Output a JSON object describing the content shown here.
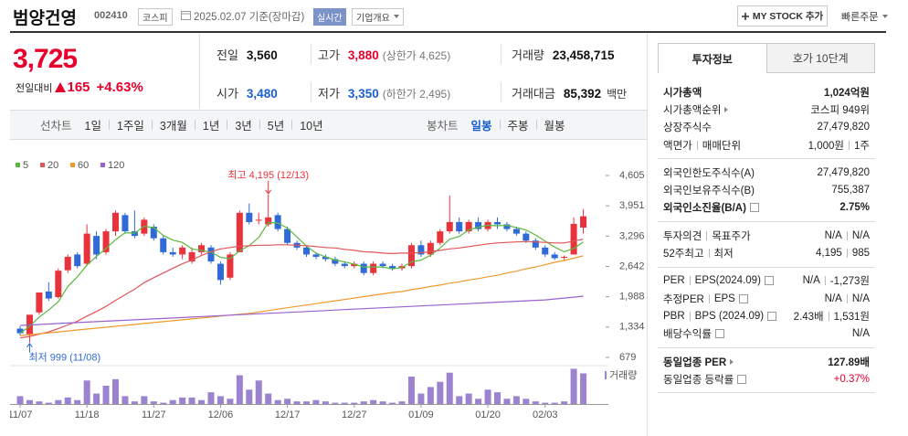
{
  "header": {
    "name": "범양건영",
    "code": "002410",
    "market": "코스피",
    "date": "2025.02.07 기준(장마감)",
    "realtime": "실시간",
    "company": "기업개요",
    "my_stock": "MY STOCK 추가",
    "quick_order": "빠른주문"
  },
  "quote": {
    "price": "3,725",
    "change_label": "전일대비",
    "change": "165",
    "change_rate": "+4.63%",
    "stats": [
      [
        {
          "label": "전일",
          "value": "3,560",
          "color": "#111111"
        },
        {
          "label": "고가",
          "value": "3,880",
          "note": "(상한가 4,625)",
          "color": "#e8002c"
        },
        {
          "label": "거래량",
          "value": "23,458,715",
          "color": "#111111"
        }
      ],
      [
        {
          "label": "시가",
          "value": "3,480",
          "color": "#1a5fd1"
        },
        {
          "label": "저가",
          "value": "3,350",
          "note": "(하한가 2,495)",
          "color": "#1a5fd1"
        },
        {
          "label": "거래대금",
          "value": "85,392",
          "unit": "백만",
          "color": "#111111"
        }
      ]
    ]
  },
  "toolbar": {
    "line_chart": "선차트",
    "line_periods": [
      "1일",
      "1주일",
      "3개월",
      "1년",
      "3년",
      "5년",
      "10년"
    ],
    "candle_chart": "봉차트",
    "candle_periods": [
      "일봉",
      "주봉",
      "월봉"
    ],
    "active": "일봉"
  },
  "invest_info": {
    "tabs": [
      "투자정보",
      "호가 10단계"
    ],
    "sections": [
      [
        {
          "label": [
            "시가총액"
          ],
          "value": [
            "1,024억원"
          ],
          "bold": true
        },
        {
          "label": [
            "시가총액순위"
          ],
          "link": true,
          "value": [
            "코스피 949위"
          ]
        },
        {
          "label": [
            "상장주식수"
          ],
          "value": [
            "27,479,820"
          ]
        },
        {
          "label": [
            "액면가",
            "매매단위"
          ],
          "value": [
            "1,000원",
            "1주"
          ]
        }
      ],
      [
        {
          "label": [
            "외국인한도주식수(A)"
          ],
          "value": [
            "27,479,820"
          ]
        },
        {
          "label": [
            "외국인보유주식수(B)"
          ],
          "value": [
            "755,387"
          ]
        },
        {
          "label": [
            "외국인소진율(B/A)"
          ],
          "help": true,
          "value": [
            "2.75%"
          ],
          "bold": true
        }
      ],
      [
        {
          "label": [
            "투자의견",
            "목표주가"
          ],
          "value": [
            "N/A",
            "N/A"
          ]
        },
        {
          "label": [
            "52주최고",
            "최저"
          ],
          "value": [
            "4,195",
            "985"
          ]
        }
      ],
      [
        {
          "label": [
            "PER",
            "EPS(2024.09)"
          ],
          "help": true,
          "value": [
            "N/A",
            "-1,273원"
          ]
        },
        {
          "label": [
            "추정PER",
            "EPS"
          ],
          "help": true,
          "value": [
            "N/A",
            "N/A"
          ]
        },
        {
          "label": [
            "PBR",
            "BPS (2024.09)"
          ],
          "help": true,
          "value": [
            "2.43배",
            "1,531원"
          ]
        },
        {
          "label": [
            "배당수익률"
          ],
          "help": true,
          "value": [
            "N/A"
          ]
        }
      ],
      [
        {
          "label": [
            "동일업종 PER"
          ],
          "link": true,
          "value": [
            "127.89배"
          ],
          "bold": true
        },
        {
          "label": [
            "동일업종 등락률"
          ],
          "help": true,
          "value": [
            "+0.37%"
          ],
          "color": "#e8002c"
        }
      ]
    ]
  },
  "chart_data": {
    "type": "candlestick",
    "categories": [
      "11/07",
      null,
      null,
      null,
      null,
      null,
      null,
      "11/18",
      null,
      null,
      null,
      null,
      null,
      null,
      "11/27",
      null,
      null,
      null,
      null,
      null,
      null,
      "12/06",
      null,
      null,
      null,
      null,
      null,
      null,
      "12/17",
      null,
      null,
      null,
      null,
      null,
      null,
      "12/27",
      null,
      null,
      null,
      null,
      null,
      null,
      "01/09",
      null,
      null,
      null,
      null,
      null,
      null,
      "01/20",
      null,
      null,
      null,
      null,
      null,
      "02/03",
      null,
      null,
      null,
      null
    ],
    "open": [
      1300,
      1180,
      1650,
      2100,
      1980,
      2560,
      2900,
      2700,
      3300,
      2950,
      3400,
      3750,
      3400,
      3350,
      3500,
      3250,
      2950,
      2900,
      2750,
      2950,
      3050,
      2700,
      2400,
      2950,
      3800,
      3650,
      3550,
      3750,
      3450,
      3150,
      3050,
      2900,
      2850,
      2800,
      2700,
      2650,
      2700,
      2500,
      2700,
      2650,
      2600,
      2650,
      3100,
      2900,
      3150,
      3400,
      3600,
      3400,
      3600,
      3450,
      3600,
      3550,
      3450,
      3350,
      3200,
      3050,
      2900,
      2830,
      2900,
      3480
    ],
    "high": [
      1350,
      1600,
      2080,
      2300,
      2600,
      2900,
      2950,
      3550,
      3400,
      3450,
      3850,
      3800,
      3850,
      3700,
      3550,
      3300,
      3050,
      3100,
      3050,
      3150,
      3100,
      2750,
      2950,
      3850,
      4000,
      3800,
      4195,
      3800,
      3500,
      3200,
      3100,
      2950,
      2900,
      2850,
      2750,
      2750,
      2750,
      2750,
      2750,
      2700,
      2700,
      3150,
      3200,
      3200,
      3450,
      4170,
      3700,
      3650,
      3700,
      3650,
      3700,
      3600,
      3500,
      3400,
      3250,
      3100,
      2950,
      2880,
      3700,
      3880
    ],
    "low": [
      1150,
      999,
      1600,
      1900,
      1950,
      2500,
      2600,
      2650,
      2800,
      2900,
      3300,
      3350,
      3250,
      3300,
      3200,
      2900,
      2850,
      2800,
      2700,
      2900,
      2700,
      2250,
      2350,
      2950,
      3550,
      3550,
      3500,
      3400,
      3100,
      3000,
      2850,
      2800,
      2750,
      2650,
      2600,
      2600,
      2450,
      2450,
      2600,
      2550,
      2550,
      2600,
      2850,
      2850,
      3100,
      3350,
      3350,
      3350,
      3400,
      3400,
      3450,
      3400,
      3300,
      3150,
      3000,
      2850,
      2780,
      2780,
      2900,
      3350
    ],
    "close": [
      1200,
      1600,
      2080,
      1950,
      2550,
      2850,
      2650,
      3350,
      2900,
      3400,
      3800,
      3400,
      3300,
      3650,
      3250,
      2950,
      2900,
      3050,
      2950,
      3100,
      2750,
      2350,
      2900,
      3800,
      3600,
      3650,
      3700,
      3450,
      3150,
      3050,
      2900,
      2850,
      2800,
      2700,
      2650,
      2700,
      2500,
      2700,
      2650,
      2600,
      2650,
      3100,
      2900,
      3150,
      3400,
      3600,
      3400,
      3600,
      3450,
      3600,
      3550,
      3450,
      3350,
      3200,
      3050,
      2900,
      2820,
      2850,
      3560,
      3725
    ],
    "up_color": "#e8323c",
    "down_color": "#2f6ad8",
    "series": [
      {
        "name": "5",
        "color": "#5cb840",
        "values": [
          1200,
          1350,
          1550,
          1700,
          1880,
          2210,
          2420,
          2670,
          2860,
          3030,
          3220,
          3370,
          3360,
          3510,
          3480,
          3310,
          3210,
          3160,
          3020,
          2990,
          2950,
          2840,
          2810,
          2980,
          3090,
          3270,
          3590,
          3580,
          3470,
          3280,
          3080,
          2930,
          2850,
          2780,
          2740,
          2690,
          2630,
          2630,
          2630,
          2590,
          2620,
          2740,
          2780,
          2880,
          3040,
          3230,
          3290,
          3430,
          3490,
          3530,
          3520,
          3530,
          3480,
          3430,
          3320,
          3190,
          3060,
          2960,
          3030,
          3170
        ]
      },
      {
        "name": "20",
        "color": "#e05555",
        "values": [
          1100,
          1130,
          1180,
          1230,
          1300,
          1380,
          1460,
          1570,
          1670,
          1780,
          1910,
          2030,
          2150,
          2290,
          2400,
          2500,
          2600,
          2700,
          2780,
          2880,
          2960,
          3020,
          3050,
          3080,
          3090,
          3100,
          3100,
          3110,
          3110,
          3100,
          3090,
          3070,
          3050,
          3040,
          3010,
          2990,
          2960,
          2950,
          2930,
          2920,
          2930,
          2930,
          2940,
          2960,
          2990,
          3020,
          3040,
          3070,
          3100,
          3130,
          3150,
          3160,
          3170,
          3180,
          3170,
          3160,
          3150,
          3150,
          3190,
          3230
        ]
      },
      {
        "name": "60",
        "color": "#f09a2e",
        "values": [
          1150,
          1170,
          1190,
          1210,
          1230,
          1250,
          1270,
          1290,
          1310,
          1330,
          1350,
          1370,
          1390,
          1410,
          1430,
          1450,
          1470,
          1490,
          1510,
          1530,
          1550,
          1570,
          1590,
          1610,
          1630,
          1660,
          1690,
          1720,
          1750,
          1780,
          1810,
          1840,
          1870,
          1900,
          1930,
          1960,
          1990,
          2020,
          2050,
          2080,
          2100,
          2140,
          2170,
          2210,
          2240,
          2280,
          2310,
          2350,
          2380,
          2420,
          2450,
          2500,
          2540,
          2590,
          2630,
          2680,
          2730,
          2770,
          2820,
          2870
        ]
      },
      {
        "name": "120",
        "color": "#9a62cf",
        "values": [
          1370,
          1380,
          1390,
          1400,
          1410,
          1420,
          1430,
          1440,
          1450,
          1460,
          1470,
          1480,
          1490,
          1500,
          1510,
          1520,
          1530,
          1540,
          1550,
          1560,
          1570,
          1580,
          1590,
          1600,
          1610,
          1620,
          1630,
          1640,
          1650,
          1660,
          1670,
          1680,
          1690,
          1700,
          1710,
          1720,
          1730,
          1740,
          1750,
          1760,
          1770,
          1780,
          1790,
          1800,
          1810,
          1820,
          1830,
          1840,
          1850,
          1860,
          1870,
          1880,
          1890,
          1900,
          1910,
          1920,
          1940,
          1960,
          1980,
          2000
        ]
      }
    ],
    "ylim": [
      679,
      4605
    ],
    "yticks": [
      {
        "value": 4605,
        "label": "4,605"
      },
      {
        "value": 3951,
        "label": "3,951"
      },
      {
        "value": 3296,
        "label": "3,296"
      },
      {
        "value": 2642,
        "label": "2,642"
      },
      {
        "value": 1988,
        "label": "1,988"
      },
      {
        "value": 1334,
        "label": "1,334"
      },
      679
    ],
    "annotations": [
      {
        "text": "최고 4,195 (12/13)",
        "color": "#e8323c"
      },
      {
        "text": "최저 999 (11/08)",
        "color": "#2f6ad8"
      }
    ],
    "volume": {
      "name": "거래량",
      "color": "#9b83cf",
      "values": [
        6,
        3,
        2,
        1,
        3,
        5,
        3,
        18,
        8,
        14,
        19,
        6,
        2,
        6,
        2,
        1,
        3,
        5,
        5,
        3,
        9,
        6,
        4,
        22,
        11,
        18,
        8,
        3,
        4,
        2,
        2,
        3,
        2,
        1,
        1,
        1,
        2,
        3,
        2,
        1,
        2,
        21,
        8,
        13,
        17,
        24,
        6,
        8,
        4,
        11,
        9,
        4,
        6,
        4,
        2,
        1,
        1,
        2,
        27,
        23.46
      ]
    },
    "volume_ylim": [
      0,
      28
    ]
  }
}
